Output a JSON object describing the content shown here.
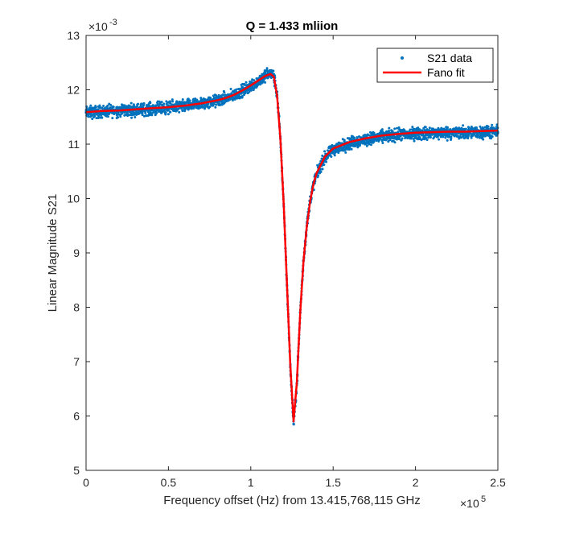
{
  "chart_data": {
    "type": "scatter",
    "title": "Q = 1.433 mliion",
    "xlabel": "Frequency offset (Hz) from 13.415,768,115 GHz",
    "ylabel": "Linear Magnitude S21",
    "x_multiplier_label": "×10",
    "x_multiplier_exp": "5",
    "y_multiplier_label": "×10",
    "y_multiplier_exp": "-3",
    "xlim": [
      0,
      2.5
    ],
    "ylim": [
      5,
      13
    ],
    "x_ticks": [
      0,
      0.5,
      1,
      1.5,
      2,
      2.5
    ],
    "x_tick_labels": [
      "0",
      "0.5",
      "1",
      "1.5",
      "2",
      "2.5"
    ],
    "y_ticks": [
      5,
      6,
      7,
      8,
      9,
      10,
      11,
      12,
      13
    ],
    "y_tick_labels": [
      "5",
      "6",
      "7",
      "8",
      "9",
      "10",
      "11",
      "12",
      "13"
    ],
    "grid": false,
    "legend_position": "top-right",
    "series": [
      {
        "name": "S21 data",
        "kind": "scatter",
        "color": "#0072BD",
        "x": [
          0,
          0.1,
          0.2,
          0.3,
          0.4,
          0.5,
          0.6,
          0.7,
          0.8,
          0.85,
          0.9,
          0.95,
          1.0,
          1.05,
          1.08,
          1.1,
          1.12,
          1.14,
          1.16,
          1.18,
          1.2,
          1.22,
          1.24,
          1.26,
          1.28,
          1.3,
          1.32,
          1.34,
          1.36,
          1.38,
          1.4,
          1.45,
          1.5,
          1.6,
          1.7,
          1.8,
          1.9,
          2.0,
          2.1,
          2.2,
          2.3,
          2.4,
          2.5
        ],
        "y": [
          11.58,
          11.6,
          11.62,
          11.63,
          11.65,
          11.67,
          11.7,
          11.74,
          11.8,
          11.84,
          11.9,
          11.98,
          12.07,
          12.17,
          12.24,
          12.28,
          12.3,
          12.25,
          11.9,
          11.1,
          9.9,
          8.4,
          6.9,
          5.85,
          6.6,
          7.9,
          8.85,
          9.5,
          9.95,
          10.25,
          10.45,
          10.75,
          10.9,
          11.02,
          11.09,
          11.14,
          11.17,
          11.19,
          11.2,
          11.21,
          11.21,
          11.22,
          11.22
        ]
      },
      {
        "name": "Fano fit",
        "kind": "line",
        "color": "#FF0000",
        "x": [
          0,
          0.1,
          0.2,
          0.3,
          0.4,
          0.5,
          0.6,
          0.7,
          0.8,
          0.85,
          0.9,
          0.95,
          1.0,
          1.05,
          1.08,
          1.1,
          1.12,
          1.14,
          1.16,
          1.18,
          1.2,
          1.22,
          1.24,
          1.26,
          1.28,
          1.3,
          1.32,
          1.34,
          1.36,
          1.38,
          1.4,
          1.45,
          1.5,
          1.6,
          1.7,
          1.8,
          1.9,
          2.0,
          2.1,
          2.2,
          2.3,
          2.4,
          2.5
        ],
        "y": [
          11.59,
          11.61,
          11.62,
          11.64,
          11.66,
          11.68,
          11.71,
          11.75,
          11.81,
          11.85,
          11.91,
          11.99,
          12.08,
          12.18,
          12.24,
          12.27,
          12.29,
          12.24,
          11.88,
          11.08,
          9.88,
          8.38,
          6.92,
          5.9,
          6.62,
          7.88,
          8.84,
          9.48,
          9.94,
          10.26,
          10.47,
          10.77,
          10.92,
          11.04,
          11.11,
          11.16,
          11.19,
          11.21,
          11.22,
          11.23,
          11.23,
          11.24,
          11.25
        ]
      }
    ]
  }
}
